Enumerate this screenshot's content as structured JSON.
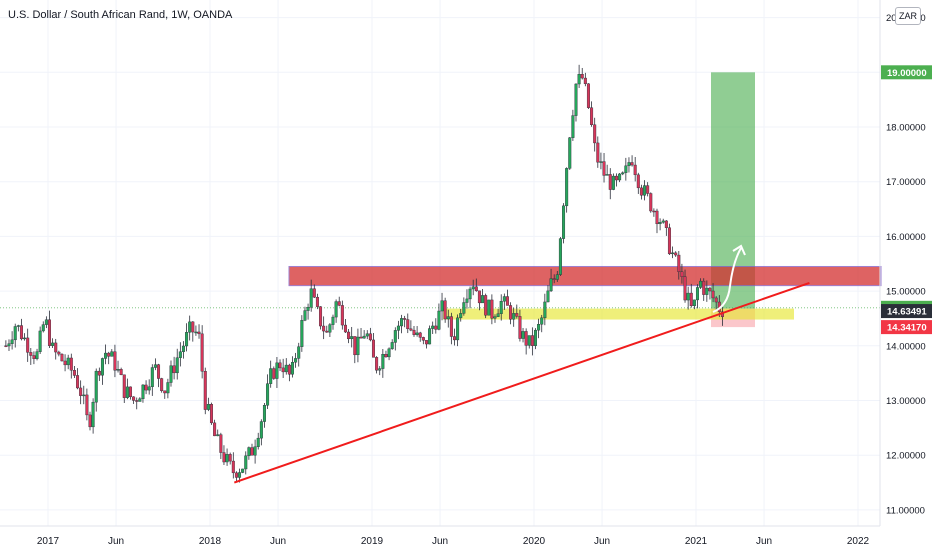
{
  "title": "U.S. Dollar / South African Rand, 1W, OANDA",
  "currency_button": "ZAR",
  "chart_data": {
    "type": "candlestick",
    "title": "U.S. Dollar / South African Rand, 1W, OANDA",
    "ylim": [
      10.8,
      20.3
    ],
    "y_ticks": [
      "11.00000",
      "12.00000",
      "13.00000",
      "14.00000",
      "15.00000",
      "16.00000",
      "17.00000",
      "18.00000",
      "19.00000",
      "20.00000"
    ],
    "x_ticks": [
      "2017",
      "Jun",
      "2018",
      "Jun",
      "2019",
      "Jun",
      "2020",
      "Jun",
      "2021",
      "Jun",
      "2022"
    ],
    "grid": true,
    "price_labels": [
      {
        "value": 19.0,
        "text": "19.00000",
        "color": "#4caf50"
      },
      {
        "value": 14.69445,
        "text": "14.69445",
        "color": "#4caf50"
      },
      {
        "value": 14.63491,
        "text": "14.63491",
        "color": "#2a2e39"
      },
      {
        "value": 14.3417,
        "text": "14.34170",
        "color": "#f23645"
      }
    ],
    "current_price": 14.69445,
    "resistance_zone": [
      15.1,
      15.45
    ],
    "support_zone": [
      14.48,
      14.68
    ],
    "target": 19.0,
    "stop": 14.3417,
    "trendline": [
      {
        "t": 2018.15,
        "p": 11.5
      },
      {
        "t": 2021.7,
        "p": 15.15
      }
    ],
    "prices": [
      {
        "t": 2016.74,
        "p": 14.0
      },
      {
        "t": 2016.8,
        "p": 14.4
      },
      {
        "t": 2016.86,
        "p": 14.1
      },
      {
        "t": 2016.93,
        "p": 13.8
      },
      {
        "t": 2016.98,
        "p": 14.5
      },
      {
        "t": 2017.03,
        "p": 13.9
      },
      {
        "t": 2017.1,
        "p": 13.7
      },
      {
        "t": 2017.16,
        "p": 13.5
      },
      {
        "t": 2017.21,
        "p": 13.1
      },
      {
        "t": 2017.25,
        "p": 12.5
      },
      {
        "t": 2017.3,
        "p": 13.5
      },
      {
        "t": 2017.35,
        "p": 13.9
      },
      {
        "t": 2017.41,
        "p": 13.7
      },
      {
        "t": 2017.47,
        "p": 13.2
      },
      {
        "t": 2017.53,
        "p": 13.0
      },
      {
        "t": 2017.6,
        "p": 13.3
      },
      {
        "t": 2017.66,
        "p": 13.6
      },
      {
        "t": 2017.72,
        "p": 13.2
      },
      {
        "t": 2017.8,
        "p": 13.8
      },
      {
        "t": 2017.88,
        "p": 14.3
      },
      {
        "t": 2017.93,
        "p": 14.2
      },
      {
        "t": 2017.97,
        "p": 13.0
      },
      {
        "t": 2018.02,
        "p": 12.4
      },
      {
        "t": 2018.08,
        "p": 12.0
      },
      {
        "t": 2018.14,
        "p": 11.7
      },
      {
        "t": 2018.2,
        "p": 11.8
      },
      {
        "t": 2018.26,
        "p": 12.1
      },
      {
        "t": 2018.32,
        "p": 12.7
      },
      {
        "t": 2018.38,
        "p": 13.5
      },
      {
        "t": 2018.44,
        "p": 13.7
      },
      {
        "t": 2018.5,
        "p": 13.4
      },
      {
        "t": 2018.56,
        "p": 14.3
      },
      {
        "t": 2018.62,
        "p": 15.0
      },
      {
        "t": 2018.66,
        "p": 14.6
      },
      {
        "t": 2018.72,
        "p": 14.2
      },
      {
        "t": 2018.78,
        "p": 14.8
      },
      {
        "t": 2018.84,
        "p": 14.4
      },
      {
        "t": 2018.9,
        "p": 13.9
      },
      {
        "t": 2018.96,
        "p": 14.3
      },
      {
        "t": 2019.02,
        "p": 13.6
      },
      {
        "t": 2019.08,
        "p": 13.9
      },
      {
        "t": 2019.14,
        "p": 14.3
      },
      {
        "t": 2019.2,
        "p": 14.5
      },
      {
        "t": 2019.26,
        "p": 14.2
      },
      {
        "t": 2019.32,
        "p": 14.0
      },
      {
        "t": 2019.38,
        "p": 14.4
      },
      {
        "t": 2019.44,
        "p": 14.7
      },
      {
        "t": 2019.5,
        "p": 14.1
      },
      {
        "t": 2019.56,
        "p": 14.9
      },
      {
        "t": 2019.62,
        "p": 15.2
      },
      {
        "t": 2019.68,
        "p": 14.8
      },
      {
        "t": 2019.74,
        "p": 14.6
      },
      {
        "t": 2019.8,
        "p": 14.8
      },
      {
        "t": 2019.86,
        "p": 14.6
      },
      {
        "t": 2019.92,
        "p": 14.2
      },
      {
        "t": 2019.98,
        "p": 14.0
      },
      {
        "t": 2020.04,
        "p": 14.4
      },
      {
        "t": 2020.1,
        "p": 15.1
      },
      {
        "t": 2020.14,
        "p": 15.3
      },
      {
        "t": 2020.18,
        "p": 16.6
      },
      {
        "t": 2020.22,
        "p": 17.9
      },
      {
        "t": 2020.26,
        "p": 18.8
      },
      {
        "t": 2020.3,
        "p": 18.9
      },
      {
        "t": 2020.34,
        "p": 18.3
      },
      {
        "t": 2020.38,
        "p": 17.5
      },
      {
        "t": 2020.44,
        "p": 17.1
      },
      {
        "t": 2020.5,
        "p": 16.9
      },
      {
        "t": 2020.56,
        "p": 17.1
      },
      {
        "t": 2020.6,
        "p": 17.5
      },
      {
        "t": 2020.66,
        "p": 16.9
      },
      {
        "t": 2020.72,
        "p": 16.6
      },
      {
        "t": 2020.78,
        "p": 16.3
      },
      {
        "t": 2020.84,
        "p": 15.8
      },
      {
        "t": 2020.9,
        "p": 15.3
      },
      {
        "t": 2020.94,
        "p": 14.9
      },
      {
        "t": 2020.98,
        "p": 14.6
      },
      {
        "t": 2021.02,
        "p": 15.2
      },
      {
        "t": 2021.06,
        "p": 15.0
      },
      {
        "t": 2021.1,
        "p": 14.9
      },
      {
        "t": 2021.14,
        "p": 14.7
      },
      {
        "t": 2021.18,
        "p": 14.65
      }
    ]
  }
}
